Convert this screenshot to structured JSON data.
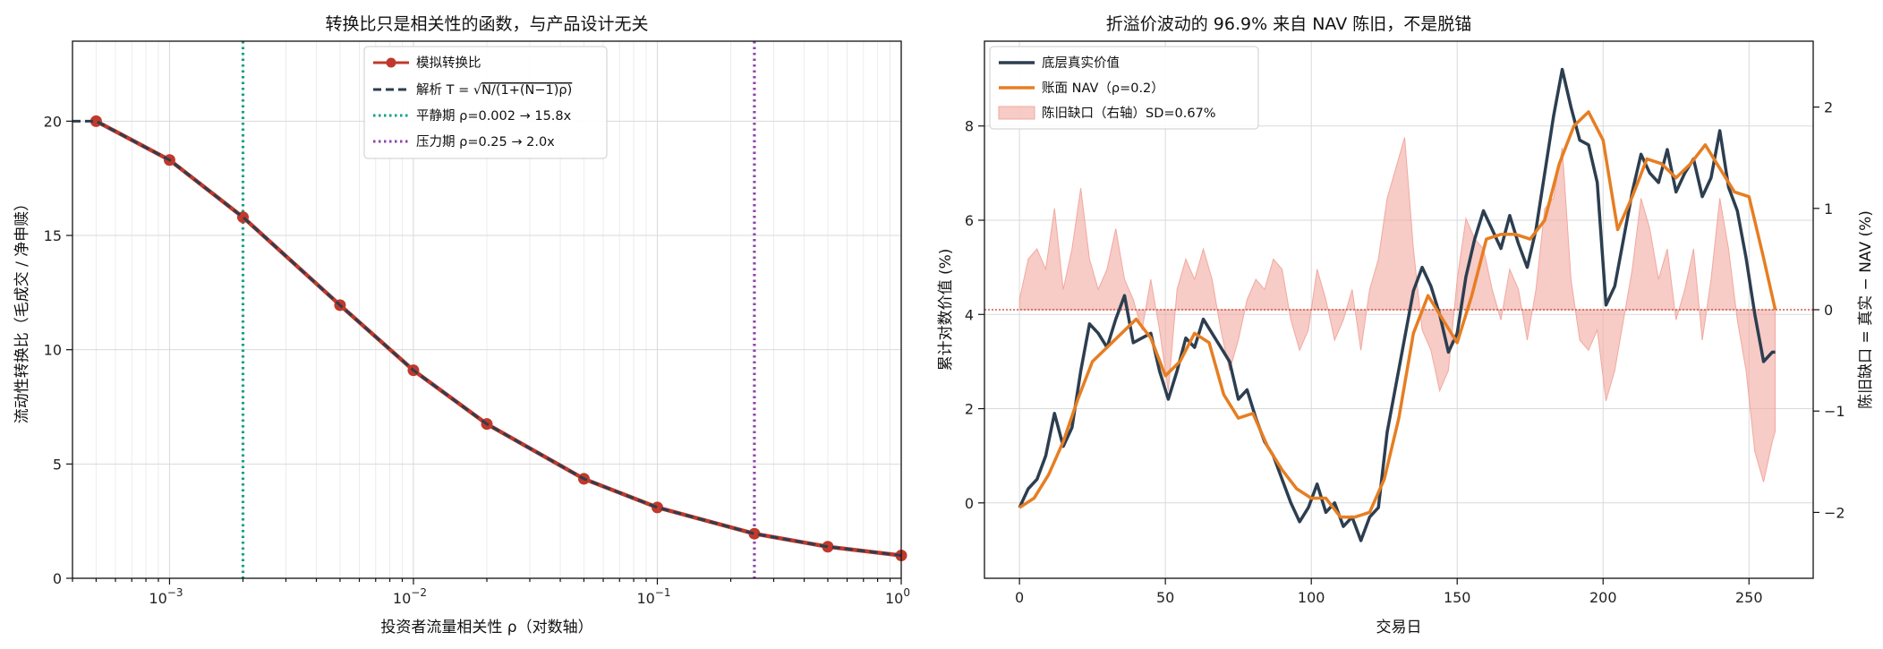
{
  "colors": {
    "sim": "#c0392b",
    "analytic": "#2c3e50",
    "calm": "#16a085",
    "stress": "#8e44ad",
    "true_value": "#2c3e50",
    "nav": "#e67e22",
    "gap_fill": "#f1a9a0",
    "gap_axis": "#c0392b"
  },
  "chart_data": [
    {
      "type": "line",
      "title": "转换比只是相关性的函数，与产品设计无关",
      "xlabel": "投资者流量相关性 ρ（对数轴）",
      "ylabel": "流动性转换比（毛成交 / 净申赎）",
      "x_scale": "log",
      "xlim": [
        0.0004,
        1
      ],
      "ylim": [
        0,
        23.5
      ],
      "x_ticks": [
        {
          "value": 0.001,
          "base": "10",
          "exp": "−3"
        },
        {
          "value": 0.01,
          "base": "10",
          "exp": "−2"
        },
        {
          "value": 0.1,
          "base": "10",
          "exp": "−1"
        },
        {
          "value": 1,
          "base": "10",
          "exp": "0"
        }
      ],
      "y_ticks": [
        0,
        5,
        10,
        15,
        20
      ],
      "grid": true,
      "legend_position": "top-center",
      "series": [
        {
          "name": "模拟转换比",
          "style": "solid-markers",
          "x": [
            0.0005,
            0.001,
            0.002,
            0.005,
            0.01,
            0.02,
            0.05,
            0.1,
            0.25,
            0.5,
            1.0
          ],
          "y": [
            20.0,
            18.3,
            15.8,
            11.95,
            9.1,
            6.75,
            4.35,
            3.1,
            1.95,
            1.38,
            1.0
          ]
        },
        {
          "name": "解析 T = √N/(1+(N−1)ρ)",
          "legend_prefix": "解析 T = ",
          "legend_formula": "N/(1+(N−1)ρ)",
          "style": "dashed",
          "x": [
            0.0004,
            0.0005,
            0.001,
            0.002,
            0.005,
            0.01,
            0.02,
            0.05,
            0.1,
            0.25,
            0.5,
            1.0
          ],
          "y": [
            20.0,
            20.0,
            18.3,
            15.8,
            11.95,
            9.1,
            6.75,
            4.35,
            3.1,
            1.95,
            1.38,
            1.0
          ]
        }
      ],
      "reference_lines": [
        {
          "name": "平静期 ρ=0.002 → 15.8x",
          "x": 0.002,
          "color_key": "calm"
        },
        {
          "name": "压力期 ρ=0.25 → 2.0x",
          "x": 0.25,
          "color_key": "stress"
        }
      ]
    },
    {
      "type": "line",
      "title": "折溢价波动的 96.9% 来自 NAV 陈旧，不是脱锚",
      "xlabel": "交易日",
      "ylabel": "累计对数价值 (%)",
      "ylabel_right": "陈旧缺口 = 真实 − NAV (%)",
      "xlim": [
        -12,
        272
      ],
      "ylim": [
        -1.6,
        9.8
      ],
      "ylim_right": [
        -2.65,
        2.65
      ],
      "x_ticks": [
        0,
        50,
        100,
        150,
        200,
        250
      ],
      "y_ticks": [
        0,
        2,
        4,
        6,
        8
      ],
      "y_ticks_right": [
        -2,
        -1,
        0,
        1,
        2
      ],
      "grid": true,
      "legend_position": "top-left",
      "series_names": {
        "true_value": "底层真实价值",
        "nav": "账面 NAV（ρ=0.2）",
        "gap": "陈旧缺口（右轴）SD=0.67%"
      },
      "true_value_x": [
        0,
        3,
        6,
        9,
        12,
        15,
        18,
        21,
        24,
        27,
        30,
        33,
        36,
        39,
        42,
        45,
        48,
        51,
        54,
        57,
        60,
        63,
        66,
        69,
        72,
        75,
        78,
        81,
        84,
        87,
        90,
        93,
        96,
        99,
        102,
        105,
        108,
        111,
        114,
        117,
        120,
        123,
        126,
        129,
        132,
        135,
        138,
        141,
        144,
        147,
        150,
        153,
        156,
        159,
        162,
        165,
        168,
        171,
        174,
        177,
        180,
        183,
        186,
        189,
        192,
        195,
        198,
        201,
        204,
        207,
        210,
        213,
        216,
        219,
        222,
        225,
        228,
        231,
        234,
        237,
        240,
        243,
        246,
        249,
        252,
        255,
        258,
        259
      ],
      "true_value_y": [
        -0.1,
        0.3,
        0.5,
        1.0,
        1.9,
        1.2,
        1.6,
        2.8,
        3.8,
        3.6,
        3.3,
        3.9,
        4.4,
        3.4,
        3.5,
        3.6,
        2.8,
        2.2,
        2.8,
        3.5,
        3.3,
        3.9,
        3.6,
        3.3,
        3.0,
        2.2,
        2.4,
        1.8,
        1.3,
        1.0,
        0.5,
        0.0,
        -0.4,
        -0.1,
        0.4,
        -0.2,
        0.0,
        -0.5,
        -0.3,
        -0.8,
        -0.3,
        -0.1,
        1.5,
        2.5,
        3.5,
        4.5,
        5.0,
        4.6,
        4.0,
        3.2,
        3.6,
        4.8,
        5.6,
        6.2,
        5.8,
        5.4,
        6.1,
        5.5,
        5.0,
        5.8,
        7.0,
        8.2,
        9.2,
        8.4,
        7.7,
        7.6,
        6.8,
        4.2,
        4.6,
        5.6,
        6.6,
        7.4,
        7.0,
        6.8,
        7.5,
        6.6,
        7.0,
        7.3,
        6.5,
        6.9,
        7.9,
        6.7,
        6.2,
        5.2,
        4.0,
        3.0,
        3.2,
        3.2
      ],
      "nav_x": [
        0,
        5,
        10,
        15,
        20,
        25,
        30,
        35,
        40,
        45,
        50,
        55,
        60,
        65,
        70,
        75,
        80,
        85,
        90,
        95,
        100,
        105,
        110,
        115,
        120,
        125,
        130,
        135,
        140,
        145,
        150,
        155,
        160,
        165,
        170,
        175,
        180,
        185,
        190,
        195,
        200,
        205,
        210,
        215,
        220,
        225,
        230,
        235,
        240,
        245,
        250,
        255,
        259
      ],
      "nav_y": [
        -0.1,
        0.1,
        0.6,
        1.3,
        2.2,
        3.0,
        3.3,
        3.6,
        3.9,
        3.5,
        2.7,
        3.0,
        3.6,
        3.4,
        2.3,
        1.8,
        1.9,
        1.2,
        0.7,
        0.3,
        0.1,
        0.1,
        -0.3,
        -0.3,
        -0.2,
        0.5,
        1.8,
        3.6,
        4.4,
        3.9,
        3.4,
        4.4,
        5.6,
        5.7,
        5.7,
        5.6,
        6.0,
        7.2,
        8.0,
        8.3,
        7.7,
        5.8,
        6.5,
        7.3,
        7.2,
        6.9,
        7.2,
        7.6,
        7.1,
        6.6,
        6.5,
        5.2,
        4.1
      ],
      "gap_x": [
        0,
        3,
        6,
        9,
        12,
        15,
        18,
        21,
        24,
        27,
        30,
        33,
        36,
        39,
        42,
        45,
        48,
        51,
        54,
        57,
        60,
        63,
        66,
        69,
        72,
        75,
        78,
        81,
        84,
        87,
        90,
        93,
        96,
        99,
        102,
        105,
        108,
        111,
        114,
        117,
        120,
        123,
        126,
        129,
        132,
        135,
        138,
        141,
        144,
        147,
        150,
        153,
        156,
        159,
        162,
        165,
        168,
        171,
        174,
        177,
        180,
        183,
        186,
        189,
        192,
        195,
        198,
        201,
        204,
        207,
        210,
        213,
        216,
        219,
        222,
        225,
        228,
        231,
        234,
        237,
        240,
        243,
        246,
        249,
        252,
        255,
        258,
        259
      ],
      "gap_y": [
        0.1,
        0.5,
        0.6,
        0.4,
        1.0,
        0.2,
        0.6,
        1.2,
        0.5,
        0.2,
        0.4,
        0.8,
        0.3,
        0.1,
        -0.2,
        0.3,
        -0.2,
        -0.8,
        0.2,
        0.5,
        0.3,
        0.6,
        0.3,
        -0.2,
        -0.6,
        -0.3,
        0.1,
        0.3,
        0.2,
        0.5,
        0.4,
        -0.1,
        -0.4,
        -0.2,
        0.4,
        0.1,
        -0.3,
        -0.1,
        0.2,
        -0.4,
        0.2,
        0.5,
        1.1,
        1.4,
        1.7,
        0.6,
        -0.2,
        -0.4,
        -0.8,
        -0.6,
        0.3,
        0.9,
        0.7,
        0.6,
        0.2,
        -0.1,
        0.4,
        0.2,
        -0.3,
        0.2,
        1.0,
        1.1,
        1.6,
        0.3,
        -0.3,
        -0.4,
        -0.2,
        -0.9,
        -0.6,
        -0.1,
        0.4,
        1.1,
        0.8,
        0.3,
        0.6,
        -0.1,
        0.2,
        0.6,
        -0.3,
        0.3,
        1.1,
        0.6,
        -0.1,
        -0.6,
        -1.4,
        -1.7,
        -1.3,
        -1.2
      ]
    }
  ]
}
